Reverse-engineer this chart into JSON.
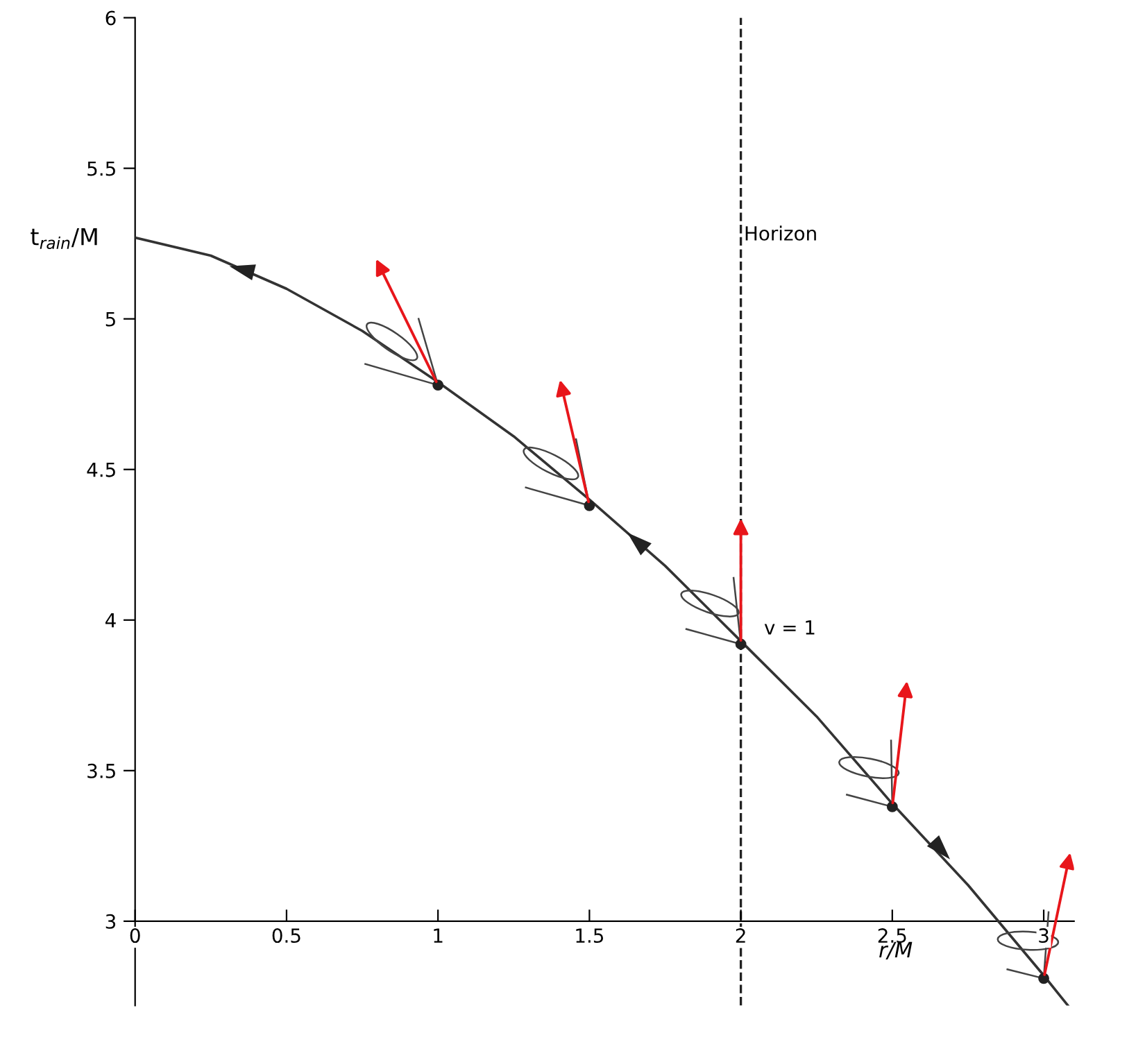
{
  "chart_data": {
    "type": "line",
    "ylabel": "t$_{rain}$/M",
    "xlabel": "r/M",
    "xlim": [
      0,
      3.1
    ],
    "ylim": [
      2.72,
      6.0
    ],
    "xticks": [
      0,
      0.5,
      1,
      1.5,
      2,
      2.5,
      3
    ],
    "yticks": [
      3,
      3.5,
      4,
      4.5,
      5,
      5.5,
      6
    ],
    "grid": false,
    "legend": false,
    "series": [
      {
        "color": "#333333",
        "marker": "none",
        "x": [
          0,
          0.25,
          0.5,
          0.75,
          1,
          1.25,
          1.5,
          1.75,
          2,
          2.25,
          2.5,
          2.75,
          3,
          3.08
        ],
        "values": [
          5.27,
          5.21,
          5.1,
          4.96,
          4.79,
          4.61,
          4.4,
          4.18,
          3.93,
          3.68,
          3.39,
          3.12,
          2.82,
          2.72
        ]
      },
      {
        "type": "scatter",
        "color": "#222222",
        "marker": "circle",
        "x": [
          1,
          1.5,
          2,
          2.5,
          3
        ],
        "values": [
          4.78,
          4.38,
          3.92,
          3.38,
          2.81
        ]
      }
    ],
    "ref_lines": [
      {
        "axis": "x",
        "value": 2,
        "label": "Horizon",
        "line_style": "dashed",
        "color": "#222222"
      }
    ],
    "annotations": [
      {
        "text": "v = 1",
        "x": 2,
        "y": 3.92
      }
    ]
  }
}
